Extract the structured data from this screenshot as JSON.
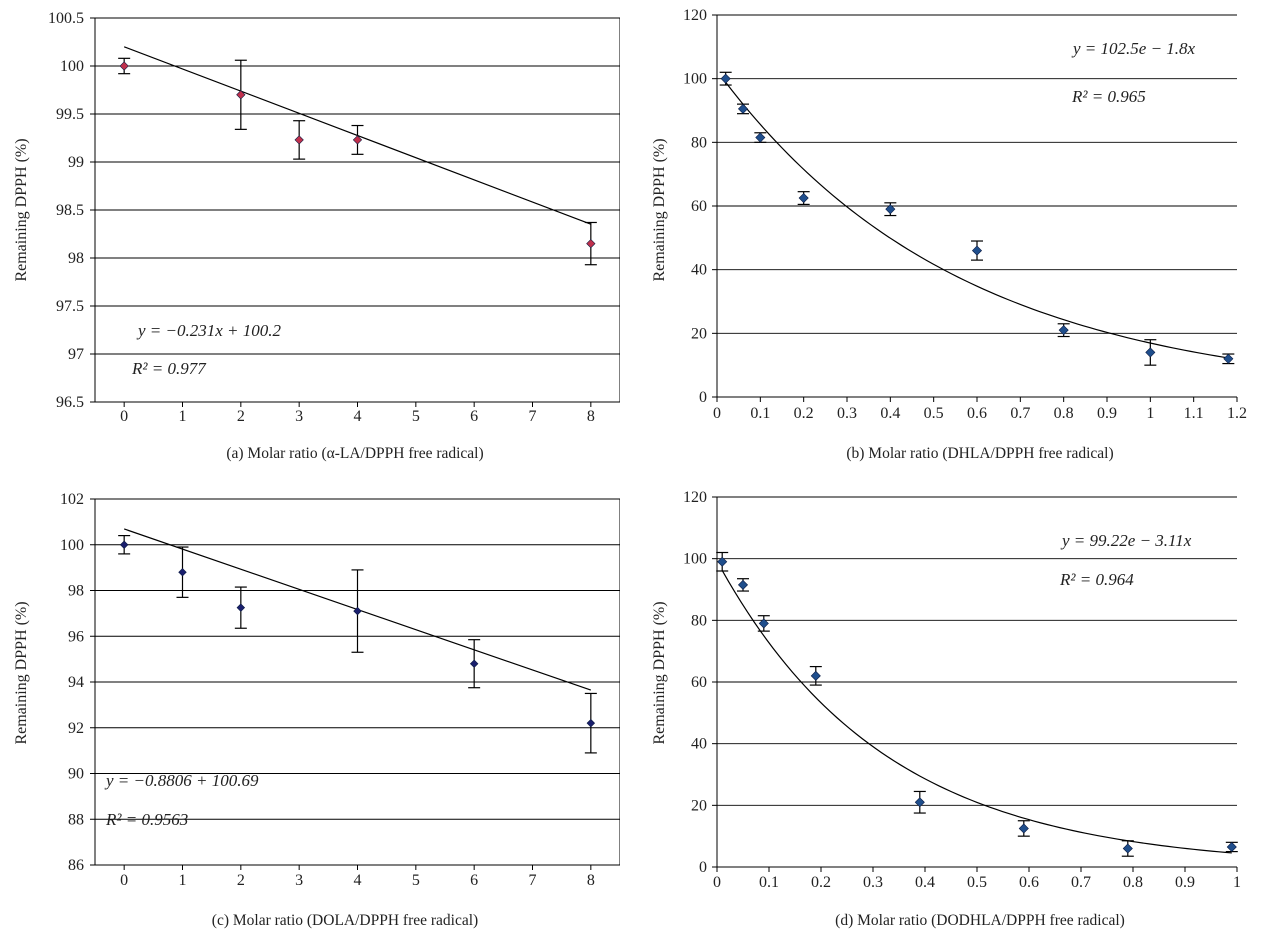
{
  "colors": {
    "marker_a": "#c0304c",
    "marker_b": "#1f4e8c",
    "marker_c": "#1a1f6e",
    "marker_d": "#1f4e8c",
    "line": "#000000",
    "grid": "#000000"
  },
  "chart_data": [
    {
      "type": "scatter",
      "caption": "(a)  Molar ratio (α-LA/DPPH free radical)",
      "ylabel": "Remaining DPPH (%)",
      "x_axis": "categorical",
      "x_tick_labels": [
        "0",
        "1",
        "2",
        "3",
        "4",
        "5",
        "6",
        "7",
        "8"
      ],
      "ylim": [
        96.5,
        100.5
      ],
      "y_ticks": [
        "96.5",
        "97",
        "97.5",
        "98",
        "98.5",
        "99",
        "99.5",
        "100",
        "100.5"
      ],
      "grid": "horizontal",
      "points": [
        {
          "x": 0,
          "y": 100.0,
          "err": 0.08
        },
        {
          "x": 2,
          "y": 99.7,
          "err": 0.36
        },
        {
          "x": 3,
          "y": 99.23,
          "err": 0.2
        },
        {
          "x": 4,
          "y": 99.23,
          "err": 0.15
        },
        {
          "x": 8,
          "y": 98.15,
          "err": 0.22
        }
      ],
      "fit": {
        "kind": "linear",
        "slope": -0.231,
        "intercept": 100.2
      },
      "equation": "y = −0.231x + 100.2",
      "r2": "R² = 0.977"
    },
    {
      "type": "scatter",
      "caption": "(b)  Molar ratio (DHLA/DPPH free radical)",
      "ylabel": "Remaining DPPH (%)",
      "x_axis": "numeric",
      "xlim": [
        0,
        1.2
      ],
      "x_tick_labels": [
        "0",
        "0.1",
        "0.2",
        "0.3",
        "0.4",
        "0.5",
        "0.6",
        "0.7",
        "0.8",
        "0.9",
        "1",
        "1.1",
        "1.2"
      ],
      "ylim": [
        0,
        120
      ],
      "y_ticks": [
        "0",
        "20",
        "40",
        "60",
        "80",
        "100",
        "120"
      ],
      "grid": "horizontal",
      "points": [
        {
          "x": 0.02,
          "y": 100,
          "err": 2
        },
        {
          "x": 0.06,
          "y": 90.5,
          "err": 1.5
        },
        {
          "x": 0.1,
          "y": 81.5,
          "err": 1.5
        },
        {
          "x": 0.2,
          "y": 62.5,
          "err": 2
        },
        {
          "x": 0.4,
          "y": 59,
          "err": 2
        },
        {
          "x": 0.6,
          "y": 46,
          "err": 3
        },
        {
          "x": 0.8,
          "y": 21,
          "err": 2
        },
        {
          "x": 1.0,
          "y": 14,
          "err": 4
        },
        {
          "x": 1.18,
          "y": 12,
          "err": 1.5
        }
      ],
      "fit": {
        "kind": "exponential",
        "a": 102.5,
        "b": -1.8
      },
      "equation": "y = 102.5e − 1.8x",
      "r2": "R² = 0.965"
    },
    {
      "type": "scatter",
      "caption": "(c)  Molar ratio (DOLA/DPPH free radical)",
      "ylabel": "Remaining DPPH (%)",
      "x_axis": "categorical",
      "x_tick_labels": [
        "0",
        "1",
        "2",
        "3",
        "4",
        "5",
        "6",
        "7",
        "8"
      ],
      "ylim": [
        86,
        102
      ],
      "y_ticks": [
        "86",
        "88",
        "90",
        "92",
        "94",
        "96",
        "98",
        "100",
        "102"
      ],
      "grid": "horizontal",
      "points": [
        {
          "x": 0,
          "y": 100.0,
          "err": 0.4
        },
        {
          "x": 1,
          "y": 98.8,
          "err": 1.1
        },
        {
          "x": 2,
          "y": 97.25,
          "err": 0.9
        },
        {
          "x": 4,
          "y": 97.1,
          "err": 1.8
        },
        {
          "x": 6,
          "y": 94.8,
          "err": 1.05
        },
        {
          "x": 8,
          "y": 92.2,
          "err": 1.3
        }
      ],
      "fit": {
        "kind": "linear",
        "slope": -0.8806,
        "intercept": 100.69
      },
      "equation": "y = −0.8806 + 100.69",
      "r2": "R² = 0.9563"
    },
    {
      "type": "scatter",
      "caption": "(d)  Molar ratio (DODHLA/DPPH free radical)",
      "ylabel": "Remaining DPPH (%)",
      "x_axis": "numeric",
      "xlim": [
        0,
        1.0
      ],
      "x_tick_labels": [
        "0",
        "0.1",
        "0.2",
        "0.3",
        "0.4",
        "0.5",
        "0.6",
        "0.7",
        "0.8",
        "0.9",
        "1"
      ],
      "ylim": [
        0,
        120
      ],
      "y_ticks": [
        "0",
        "20",
        "40",
        "60",
        "80",
        "100",
        "120"
      ],
      "grid": "horizontal",
      "points": [
        {
          "x": 0.01,
          "y": 99,
          "err": 3
        },
        {
          "x": 0.05,
          "y": 91.5,
          "err": 2
        },
        {
          "x": 0.09,
          "y": 79,
          "err": 2.5
        },
        {
          "x": 0.19,
          "y": 62,
          "err": 3
        },
        {
          "x": 0.39,
          "y": 21,
          "err": 3.5
        },
        {
          "x": 0.59,
          "y": 12.5,
          "err": 2.5
        },
        {
          "x": 0.79,
          "y": 6,
          "err": 2.5
        },
        {
          "x": 0.99,
          "y": 6.5,
          "err": 1.5
        }
      ],
      "fit": {
        "kind": "exponential",
        "a": 99.22,
        "b": -3.11
      },
      "equation": "y = 99.22e − 3.11x",
      "r2": "R² = 0.964"
    }
  ]
}
